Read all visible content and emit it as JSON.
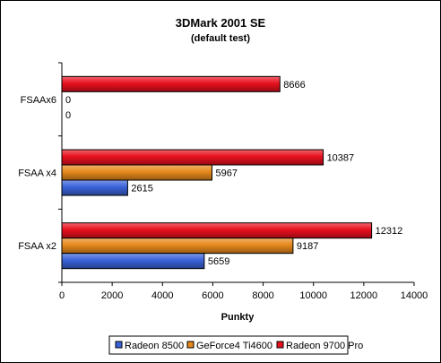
{
  "chart_data": {
    "type": "bar",
    "orientation": "horizontal",
    "title": "3DMark 2001 SE",
    "subtitle": "(default test)",
    "xlabel": "Punkty",
    "ylabel": "",
    "xlim": [
      0,
      14000
    ],
    "xticks": [
      0,
      2000,
      4000,
      6000,
      8000,
      10000,
      12000,
      14000
    ],
    "categories": [
      "FSAAx6",
      "FSAA x4",
      "FSAA x2"
    ],
    "series": [
      {
        "name": "Radeon 9700 Pro",
        "color": "#e8101e",
        "values": [
          8666,
          10387,
          12312
        ]
      },
      {
        "name": "GeForce4 Ti4600",
        "color": "#e6891c",
        "values": [
          0,
          5967,
          9187
        ]
      },
      {
        "name": "Radeon 8500",
        "color": "#3a62d8",
        "values": [
          0,
          2615,
          5659
        ]
      }
    ],
    "legend": {
      "position": "bottom",
      "order": [
        "Radeon 8500",
        "GeForce4 Ti4600",
        "Radeon 9700 Pro"
      ]
    },
    "grid": false
  }
}
